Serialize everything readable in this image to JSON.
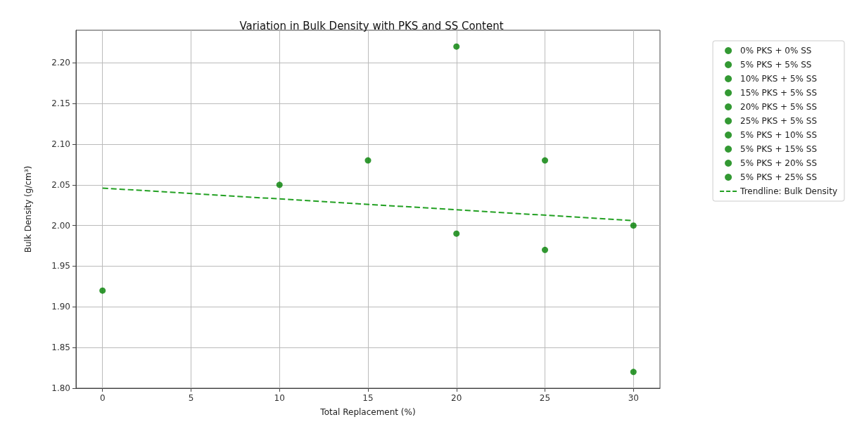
{
  "chart_data": {
    "type": "scatter",
    "title": "Variation in Bulk Density with PKS and SS Content",
    "xlabel": "Total Replacement (%)",
    "ylabel": "Bulk Density (g/cm³)",
    "xlim": [
      -1.5,
      31.5
    ],
    "xticks": [
      0,
      5,
      10,
      15,
      20,
      25,
      30
    ],
    "ylim": [
      1.8,
      2.24
    ],
    "yticks": [
      {
        "value": 1.8,
        "label": "1.80"
      },
      1.85,
      {
        "value": 1.9,
        "label": "1.90"
      },
      1.95,
      {
        "value": 2.0,
        "label": "2.00"
      },
      2.05,
      {
        "value": 2.1,
        "label": "2.10"
      },
      2.15,
      {
        "value": 2.2,
        "label": "2.20"
      }
    ],
    "grid": true,
    "legend": "top right",
    "marker": "circle",
    "series": [
      {
        "name": "0% PKS + 0% SS",
        "color": "#008000",
        "x": [
          0
        ],
        "values": [
          1.92
        ]
      },
      {
        "name": "5% PKS + 5% SS",
        "color": "#008000",
        "x": [
          10
        ],
        "values": [
          2.05
        ]
      },
      {
        "name": "10% PKS + 5% SS",
        "color": "#008000",
        "x": [
          null
        ],
        "values": [
          null
        ]
      },
      {
        "name": "15% PKS + 5% SS",
        "color": "#008000",
        "x": [
          20
        ],
        "values": [
          2.22
        ]
      },
      {
        "name": "20% PKS + 5% SS",
        "color": "#008000",
        "x": [
          25
        ],
        "values": [
          2.08
        ]
      },
      {
        "name": "25% PKS + 5% SS",
        "color": "#008000",
        "x": [
          30
        ],
        "values": [
          2.0
        ]
      },
      {
        "name": "5% PKS + 10% SS",
        "color": "#008000",
        "x": [
          15
        ],
        "values": [
          2.08
        ]
      },
      {
        "name": "5% PKS + 15% SS",
        "color": "#008000",
        "x": [
          20
        ],
        "values": [
          1.99
        ]
      },
      {
        "name": "5% PKS + 20% SS",
        "color": "#008000",
        "x": [
          25
        ],
        "values": [
          1.97
        ]
      },
      {
        "name": "5% PKS + 25% SS",
        "color": "#008000",
        "x": [
          30
        ],
        "values": [
          1.82
        ]
      },
      {
        "name": "Trendline: Bulk Density",
        "type": "line",
        "color": "#22a022",
        "line_style": "dashed",
        "marker": "none",
        "x": [
          0,
          30
        ],
        "values": [
          2.046,
          2.006
        ]
      }
    ]
  }
}
